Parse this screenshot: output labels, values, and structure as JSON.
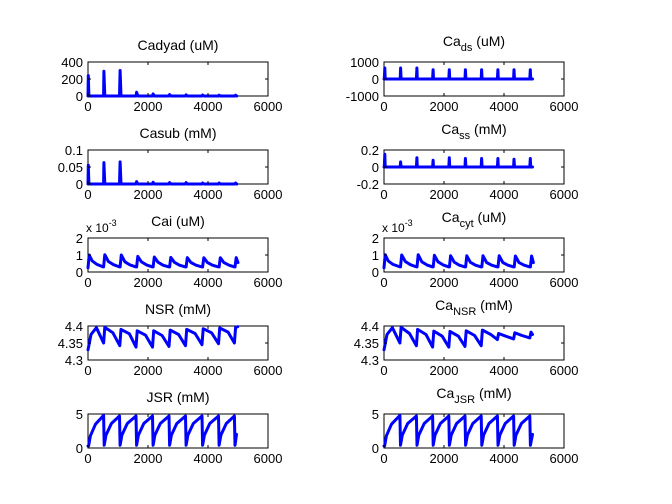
{
  "figure": {
    "background": "#ffffff",
    "line_color": "#0000ff"
  },
  "chart_data": [
    {
      "type": "line",
      "title": "Cadyad (uM)",
      "xlim": [
        0,
        6000
      ],
      "ylim": [
        0,
        400
      ],
      "xticks": [
        0,
        2000,
        4000,
        6000
      ],
      "yticks": [
        0,
        200,
        400
      ],
      "xtick_labels": [
        "0",
        "2000",
        "4000",
        "6000"
      ],
      "ytick_labels": [
        "0",
        "200",
        "400"
      ],
      "exponent": "",
      "color": "#0000ff",
      "x": [
        0,
        10,
        30,
        520,
        530,
        560,
        1050,
        1070,
        1100,
        1600,
        1620,
        1660,
        2150,
        2170,
        2210,
        2700,
        2720,
        2760,
        3250,
        3270,
        3310,
        3800,
        3820,
        3860,
        4350,
        4370,
        4410,
        4900,
        4920,
        4960
      ],
      "y": [
        0,
        240,
        0,
        0,
        290,
        0,
        0,
        300,
        0,
        0,
        45,
        0,
        0,
        25,
        0,
        0,
        18,
        0,
        0,
        14,
        0,
        0,
        12,
        0,
        0,
        10,
        0,
        0,
        10,
        0
      ]
    },
    {
      "type": "line",
      "title_parts": [
        "Ca",
        "ds",
        " (uM)"
      ],
      "xlim": [
        0,
        6000
      ],
      "ylim": [
        -1000,
        1000
      ],
      "xticks": [
        0,
        2000,
        4000,
        6000
      ],
      "yticks": [
        -1000,
        0,
        1000
      ],
      "xtick_labels": [
        "0",
        "2000",
        "4000",
        "6000"
      ],
      "ytick_labels": [
        "-1000",
        "0",
        "1000"
      ],
      "exponent": "",
      "color": "#0000ff",
      "x": [
        0,
        10,
        25,
        40,
        540,
        555,
        570,
        1080,
        1095,
        1110,
        1620,
        1635,
        1650,
        2160,
        2175,
        2190,
        2700,
        2715,
        2730,
        3240,
        3255,
        3270,
        3780,
        3795,
        3810,
        4320,
        4335,
        4350,
        4860,
        4875,
        4890,
        4950
      ],
      "y": [
        0,
        0,
        650,
        0,
        0,
        650,
        0,
        0,
        650,
        0,
        0,
        550,
        0,
        0,
        550,
        0,
        0,
        550,
        0,
        0,
        550,
        0,
        0,
        550,
        0,
        0,
        550,
        0,
        0,
        550,
        0,
        0
      ]
    },
    {
      "type": "line",
      "title": "Casub (mM)",
      "xlim": [
        0,
        6000
      ],
      "ylim": [
        0,
        0.1
      ],
      "xticks": [
        0,
        2000,
        4000,
        6000
      ],
      "yticks": [
        0,
        0.05,
        0.1
      ],
      "xtick_labels": [
        "0",
        "2000",
        "4000",
        "6000"
      ],
      "ytick_labels": [
        "0",
        "0.05",
        "0.1"
      ],
      "exponent": "",
      "color": "#0000ff",
      "x": [
        0,
        10,
        30,
        520,
        530,
        560,
        1050,
        1070,
        1100,
        1600,
        1620,
        1660,
        2150,
        2170,
        2210,
        2700,
        2720,
        2760,
        3250,
        3270,
        3310,
        3800,
        3820,
        3860,
        4350,
        4370,
        4410,
        4900,
        4920,
        4960
      ],
      "y": [
        0,
        0.055,
        0,
        0,
        0.063,
        0,
        0,
        0.065,
        0,
        0,
        0.007,
        0,
        0,
        0.005,
        0,
        0,
        0.004,
        0,
        0,
        0.004,
        0,
        0,
        0.003,
        0,
        0,
        0.003,
        0,
        0,
        0.003,
        0
      ]
    },
    {
      "type": "line",
      "title_parts": [
        "Ca",
        "ss",
        " (mM)"
      ],
      "xlim": [
        0,
        6000
      ],
      "ylim": [
        -0.2,
        0.2
      ],
      "xticks": [
        0,
        2000,
        4000,
        6000
      ],
      "yticks": [
        -0.2,
        0,
        0.2
      ],
      "xtick_labels": [
        "0",
        "2000",
        "4000",
        "6000"
      ],
      "ytick_labels": [
        "-0.2",
        "0",
        "0.2"
      ],
      "exponent": "",
      "color": "#0000ff",
      "x": [
        0,
        10,
        25,
        40,
        540,
        555,
        570,
        1080,
        1095,
        1110,
        1620,
        1635,
        1650,
        2160,
        2175,
        2190,
        2700,
        2715,
        2730,
        3240,
        3255,
        3270,
        3780,
        3795,
        3810,
        4320,
        4335,
        4350,
        4860,
        4875,
        4890,
        4950
      ],
      "y": [
        0,
        0,
        0.15,
        0,
        0,
        0.06,
        0,
        0,
        0.11,
        0,
        0,
        0.08,
        0,
        0,
        0.11,
        0,
        0,
        0.1,
        0,
        0,
        0.1,
        0,
        0,
        0.1,
        0,
        0,
        0.09,
        0,
        0,
        0.1,
        0,
        0
      ]
    },
    {
      "type": "line",
      "title": "Cai (uM)",
      "xlim": [
        0,
        6000
      ],
      "ylim": [
        0,
        2
      ],
      "xticks": [
        0,
        2000,
        4000,
        6000
      ],
      "yticks": [
        0,
        1,
        2
      ],
      "xtick_labels": [
        "0",
        "2000",
        "4000",
        "6000"
      ],
      "ytick_labels": [
        "0",
        "1",
        "2"
      ],
      "exponent": "x 10-3",
      "exponent_parts": [
        "x 10",
        "-3"
      ],
      "color": "#0000ff",
      "x": [
        0,
        40,
        140,
        300,
        500,
        520,
        560,
        680,
        850,
        1050,
        1070,
        1110,
        1230,
        1400,
        1600,
        1620,
        1660,
        1780,
        1950,
        2150,
        2170,
        2210,
        2330,
        2500,
        2700,
        2720,
        2760,
        2880,
        3050,
        3250,
        3270,
        3310,
        3430,
        3600,
        3800,
        3820,
        3860,
        3980,
        4150,
        4350,
        4370,
        4410,
        4530,
        4700,
        4880,
        4900,
        4940,
        5000
      ],
      "y": [
        0.25,
        1.0,
        0.65,
        0.45,
        0.3,
        0.3,
        1.02,
        0.62,
        0.43,
        0.3,
        0.3,
        1.0,
        0.6,
        0.42,
        0.3,
        0.3,
        0.92,
        0.6,
        0.42,
        0.3,
        0.3,
        0.88,
        0.58,
        0.4,
        0.3,
        0.3,
        0.86,
        0.57,
        0.4,
        0.3,
        0.3,
        0.85,
        0.56,
        0.4,
        0.3,
        0.3,
        0.84,
        0.56,
        0.4,
        0.3,
        0.3,
        0.84,
        0.55,
        0.4,
        0.3,
        0.3,
        0.85,
        0.55
      ]
    },
    {
      "type": "line",
      "title_parts": [
        "Ca",
        "cyt",
        " (uM)"
      ],
      "xlim": [
        0,
        6000
      ],
      "ylim": [
        0,
        2
      ],
      "xticks": [
        0,
        2000,
        4000,
        6000
      ],
      "yticks": [
        0,
        1,
        2
      ],
      "xtick_labels": [
        "0",
        "2000",
        "4000",
        "6000"
      ],
      "ytick_labels": [
        "0",
        "1",
        "2"
      ],
      "exponent": "x 10-3",
      "exponent_parts": [
        "x 10",
        "-3"
      ],
      "color": "#0000ff",
      "x": [
        0,
        40,
        140,
        300,
        530,
        550,
        590,
        710,
        880,
        1080,
        1100,
        1140,
        1260,
        1430,
        1620,
        1640,
        1680,
        1800,
        1970,
        2160,
        2180,
        2220,
        2340,
        2510,
        2700,
        2720,
        2760,
        2880,
        3050,
        3240,
        3260,
        3300,
        3420,
        3590,
        3780,
        3800,
        3840,
        3960,
        4130,
        4320,
        4340,
        4380,
        4500,
        4670,
        4860,
        4880,
        4920,
        4980
      ],
      "y": [
        0.25,
        1.02,
        0.65,
        0.45,
        0.3,
        0.3,
        1.0,
        0.62,
        0.43,
        0.3,
        0.3,
        1.02,
        0.6,
        0.42,
        0.3,
        0.3,
        0.98,
        0.6,
        0.42,
        0.3,
        0.3,
        0.96,
        0.58,
        0.4,
        0.3,
        0.3,
        0.95,
        0.57,
        0.4,
        0.3,
        0.3,
        0.95,
        0.56,
        0.4,
        0.3,
        0.3,
        0.95,
        0.56,
        0.4,
        0.3,
        0.3,
        0.94,
        0.55,
        0.4,
        0.3,
        0.3,
        0.94,
        0.55
      ]
    },
    {
      "type": "line",
      "title": "NSR (mM)",
      "xlim": [
        0,
        6000
      ],
      "ylim": [
        4.3,
        4.4
      ],
      "xticks": [
        0,
        2000,
        4000,
        6000
      ],
      "yticks": [
        4.3,
        4.35,
        4.4
      ],
      "xtick_labels": [
        "0",
        "2000",
        "4000",
        "6000"
      ],
      "ytick_labels": [
        "4.3",
        "4.35",
        "4.4"
      ],
      "exponent": "",
      "color": "#0000ff",
      "x": [
        0,
        100,
        280,
        520,
        560,
        830,
        1060,
        1100,
        1380,
        1600,
        1640,
        1920,
        2150,
        2190,
        2470,
        2700,
        2740,
        3020,
        3250,
        3290,
        3570,
        3800,
        3840,
        4120,
        4350,
        4390,
        4670,
        4880,
        4920,
        4990
      ],
      "y": [
        4.33,
        4.375,
        4.395,
        4.35,
        4.396,
        4.38,
        4.342,
        4.39,
        4.377,
        4.338,
        4.386,
        4.373,
        4.338,
        4.386,
        4.372,
        4.34,
        4.388,
        4.375,
        4.342,
        4.39,
        4.378,
        4.345,
        4.392,
        4.38,
        4.348,
        4.394,
        4.382,
        4.35,
        4.396,
        4.398
      ]
    },
    {
      "type": "line",
      "title_parts": [
        "Ca",
        "NSR",
        " (mM)"
      ],
      "xlim": [
        0,
        6000
      ],
      "ylim": [
        4.3,
        4.4
      ],
      "xticks": [
        0,
        2000,
        4000,
        6000
      ],
      "yticks": [
        4.3,
        4.35,
        4.4
      ],
      "xtick_labels": [
        "0",
        "2000",
        "4000",
        "6000"
      ],
      "ytick_labels": [
        "4.3",
        "4.35",
        "4.4"
      ],
      "exponent": "",
      "color": "#0000ff",
      "x": [
        0,
        100,
        280,
        530,
        570,
        850,
        1080,
        1120,
        1400,
        1620,
        1660,
        1940,
        2160,
        2200,
        2480,
        2700,
        2740,
        3020,
        3240,
        3280,
        3560,
        3780,
        3820,
        4060,
        4320,
        4360,
        4600,
        4860,
        4900,
        4950
      ],
      "y": [
        4.33,
        4.375,
        4.395,
        4.35,
        4.396,
        4.378,
        4.342,
        4.39,
        4.375,
        4.338,
        4.385,
        4.37,
        4.338,
        4.384,
        4.37,
        4.34,
        4.386,
        4.372,
        4.342,
        4.388,
        4.375,
        4.36,
        4.378,
        4.37,
        4.362,
        4.38,
        4.372,
        4.365,
        4.382,
        4.375
      ]
    },
    {
      "type": "line",
      "title": "JSR (mM)",
      "xlim": [
        0,
        6000
      ],
      "ylim": [
        0,
        5
      ],
      "xticks": [
        0,
        2000,
        4000,
        6000
      ],
      "yticks": [
        0,
        5
      ],
      "xtick_labels": [
        "0",
        "2000",
        "4000",
        "6000"
      ],
      "ytick_labels": [
        "0",
        "5"
      ],
      "exponent": "",
      "color": "#0000ff",
      "x": [
        0,
        20,
        80,
        250,
        520,
        540,
        600,
        780,
        1050,
        1070,
        1130,
        1310,
        1600,
        1620,
        1680,
        1860,
        2150,
        2170,
        2230,
        2410,
        2700,
        2720,
        2780,
        2960,
        3250,
        3270,
        3330,
        3510,
        3800,
        3820,
        3880,
        4060,
        4350,
        4370,
        4430,
        4610,
        4880,
        4900,
        4950
      ],
      "y": [
        0.3,
        0.3,
        1.8,
        3.5,
        4.8,
        0.4,
        1.9,
        3.6,
        4.7,
        0.4,
        1.9,
        3.6,
        4.7,
        0.4,
        1.9,
        3.6,
        4.7,
        0.4,
        1.9,
        3.6,
        4.7,
        0.4,
        1.9,
        3.6,
        4.7,
        0.4,
        1.9,
        3.6,
        4.7,
        0.4,
        1.9,
        3.6,
        4.7,
        0.4,
        1.9,
        3.6,
        4.7,
        0.4,
        2.0
      ]
    },
    {
      "type": "line",
      "title_parts": [
        "Ca",
        "JSR",
        " (mM)"
      ],
      "xlim": [
        0,
        6000
      ],
      "ylim": [
        0,
        5
      ],
      "xticks": [
        0,
        2000,
        4000,
        6000
      ],
      "yticks": [
        0,
        5
      ],
      "xtick_labels": [
        "0",
        "2000",
        "4000",
        "6000"
      ],
      "ytick_labels": [
        "0",
        "5"
      ],
      "exponent": "",
      "color": "#0000ff",
      "x": [
        0,
        20,
        80,
        250,
        530,
        550,
        610,
        790,
        1080,
        1100,
        1160,
        1340,
        1620,
        1640,
        1700,
        1880,
        2160,
        2180,
        2240,
        2420,
        2700,
        2720,
        2780,
        2960,
        3240,
        3260,
        3320,
        3500,
        3780,
        3800,
        3860,
        4040,
        4320,
        4340,
        4400,
        4580,
        4860,
        4880,
        4950
      ],
      "y": [
        0.3,
        0.3,
        1.8,
        3.5,
        4.8,
        0.4,
        1.9,
        3.6,
        4.7,
        0.4,
        1.9,
        3.6,
        4.7,
        0.4,
        1.9,
        3.6,
        4.7,
        0.4,
        1.9,
        3.6,
        4.7,
        0.4,
        1.9,
        3.6,
        4.7,
        0.4,
        1.9,
        3.6,
        4.7,
        0.4,
        1.9,
        3.6,
        4.7,
        0.4,
        1.9,
        3.6,
        4.7,
        0.4,
        2.0
      ]
    }
  ]
}
